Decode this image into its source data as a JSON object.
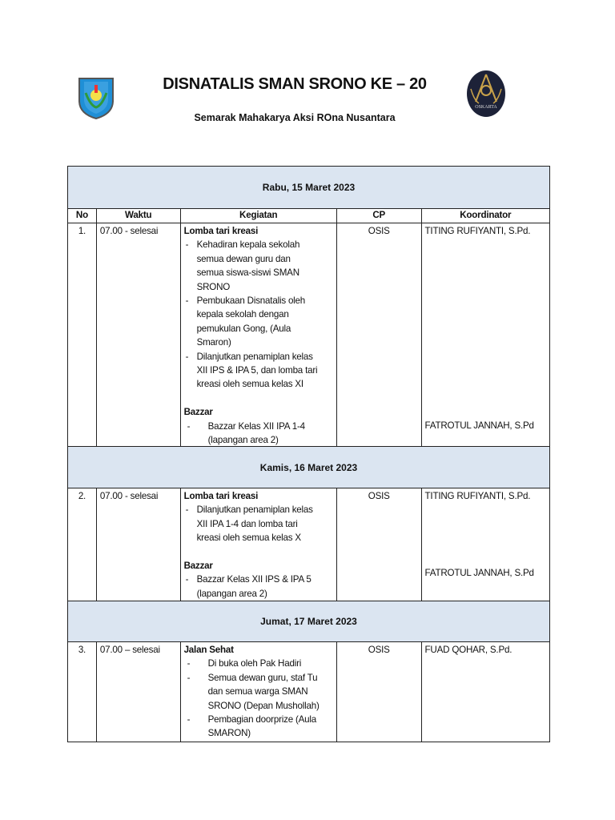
{
  "header": {
    "title": "DISNATALIS SMAN SRONO KE – 20",
    "subtitle": "Semarak Mahakarya Aksi ROna Nusantara",
    "logo_right_text": "OSKARTA"
  },
  "columns": [
    "No",
    "Waktu",
    "Kegiatan",
    "CP",
    "Koordinator"
  ],
  "days": [
    {
      "date": "Rabu, 15  Maret 2023",
      "row": {
        "no": "1.",
        "waktu": "07.00 - selesai",
        "cp": "OSIS",
        "koordinator": [
          "TITING RUFIYANTI, S.Pd.",
          "FATROTUL JANNAH, S.Pd"
        ],
        "kegiatan": [
          {
            "heading": "Lomba tari kreasi",
            "items": [
              [
                "Kehadiran kepala sekolah",
                "semua dewan guru dan",
                "semua siswa-siswi SMAN",
                "SRONO"
              ],
              [
                "Pembukaan Disnatalis oleh",
                "kepala sekolah dengan",
                "pemukulan Gong, (Aula",
                "Smaron)"
              ],
              [
                "Dilanjutkan penamiplan kelas",
                "XII IPS & IPA 5,  dan lomba tari",
                "kreasi oleh semua kelas XI"
              ]
            ]
          },
          {
            "heading": "Bazzar",
            "items": [
              [
                "Bazzar Kelas XII IPA 1-4",
                "(lapangan area 2)"
              ]
            ]
          }
        ]
      }
    },
    {
      "date": "Kamis, 16 Maret 2023",
      "row": {
        "no": "2.",
        "waktu": "07.00 - selesai",
        "cp": "OSIS",
        "koordinator": [
          "TITING RUFIYANTI, S.Pd.",
          "FATROTUL JANNAH, S.Pd"
        ],
        "kegiatan": [
          {
            "heading": "Lomba tari kreasi",
            "items": [
              [
                "Dilanjutkan penamiplan kelas",
                "XII IPA 1-4 dan lomba tari",
                "kreasi oleh semua kelas X"
              ]
            ]
          },
          {
            "heading": "Bazzar",
            "items": [
              [
                "Bazzar Kelas XII IPS & IPA 5",
                "(lapangan area 2)"
              ]
            ]
          }
        ]
      }
    },
    {
      "date": "Jumat, 17 Maret 2023",
      "row": {
        "no": "3.",
        "waktu": "07.00 – selesai",
        "cp": "OSIS",
        "koordinator": [
          "FUAD QOHAR, S.Pd."
        ],
        "kegiatan": [
          {
            "heading": "Jalan Sehat",
            "items": [
              [
                "Di buka oleh  Pak Hadiri"
              ],
              [
                "Semua dewan guru, staf Tu",
                "dan semua warga SMAN",
                "SRONO (Depan Mushollah)"
              ],
              [
                "Pembagian doorprize (Aula",
                "SMARON)"
              ]
            ]
          }
        ]
      }
    }
  ]
}
